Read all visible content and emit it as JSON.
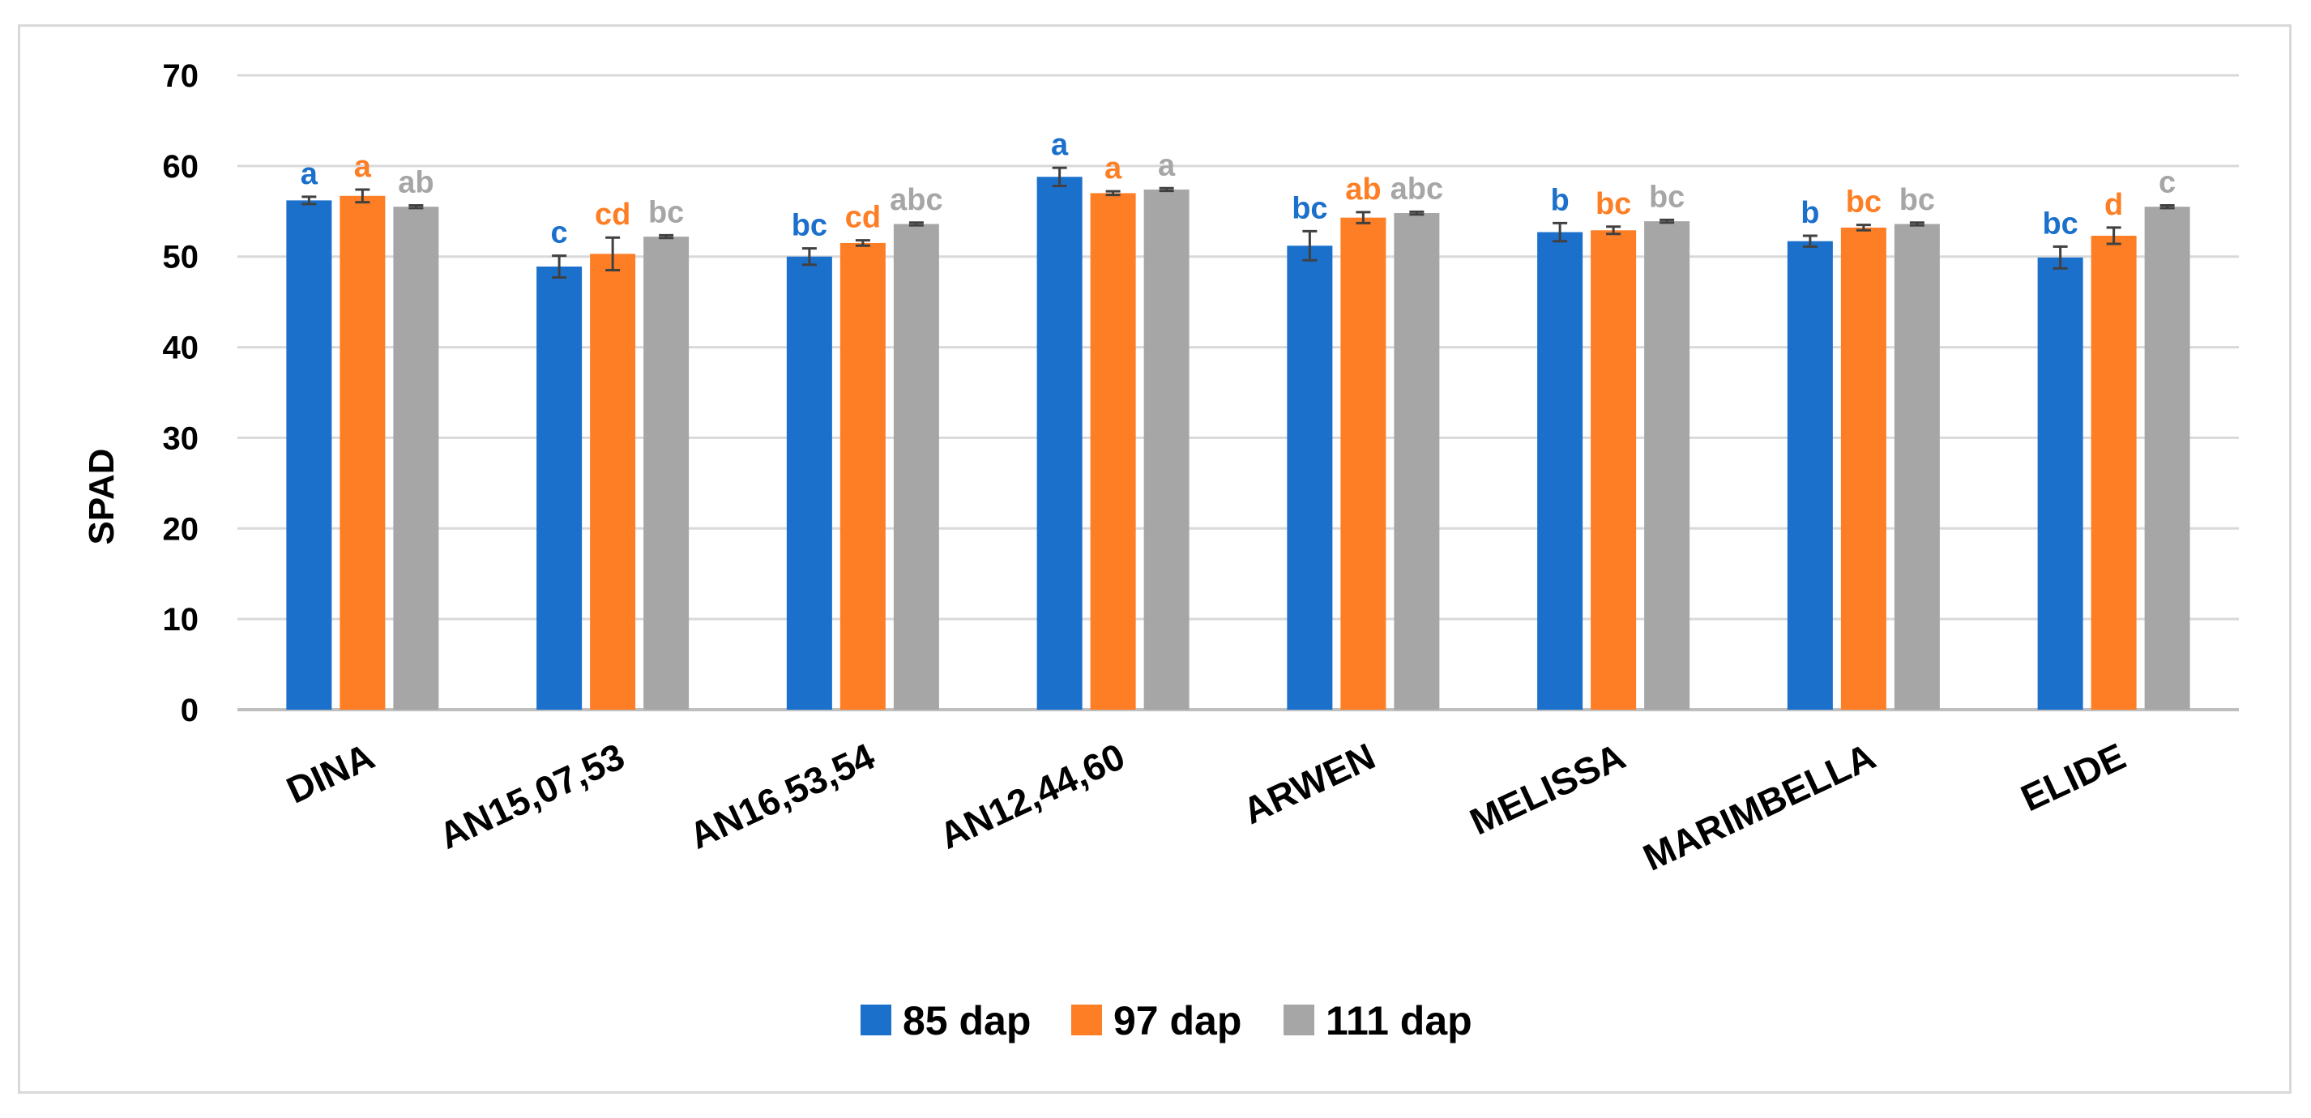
{
  "chart_data": {
    "type": "bar",
    "title": "",
    "xlabel": "",
    "ylabel": "SPAD",
    "ylim": [
      0,
      70
    ],
    "yticks": [
      0,
      10,
      20,
      30,
      40,
      50,
      60,
      70
    ],
    "grid": true,
    "legend_position": "bottom",
    "categories": [
      "DINA",
      "AN15,07,53",
      "AN16,53,54",
      "AN12,44,60",
      "ARWEN",
      "MELISSA",
      "MARIMBELLA",
      "ELIDE"
    ],
    "series": [
      {
        "name": "85 dap",
        "color": "#1b70cc",
        "values": [
          56.2,
          48.9,
          50.0,
          58.8,
          51.2,
          52.7,
          51.7,
          49.9
        ],
        "errors": [
          0.4,
          1.2,
          0.9,
          1.0,
          1.6,
          1.0,
          0.6,
          1.2
        ],
        "letters": [
          "a",
          "c",
          "bc",
          "a",
          "bc",
          "b",
          "b",
          "bc"
        ]
      },
      {
        "name": "97 dap",
        "color": "#fd7e25",
        "values": [
          56.7,
          50.3,
          51.5,
          57.0,
          54.3,
          52.9,
          53.2,
          52.3
        ],
        "errors": [
          0.7,
          1.8,
          0.3,
          0.2,
          0.6,
          0.4,
          0.3,
          0.9
        ],
        "letters": [
          "a",
          "cd",
          "cd",
          "a",
          "ab",
          "bc",
          "bc",
          "d"
        ]
      },
      {
        "name": "111 dap",
        "color": "#a6a6a6",
        "values": [
          55.5,
          52.2,
          53.6,
          57.4,
          54.8,
          53.9,
          53.6,
          55.5
        ],
        "errors": [
          0.15,
          0.15,
          0.15,
          0.15,
          0.15,
          0.15,
          0.15,
          0.15
        ],
        "letters": [
          "ab",
          "bc",
          "abc",
          "a",
          "abc",
          "bc",
          "bc",
          "c"
        ]
      }
    ]
  }
}
